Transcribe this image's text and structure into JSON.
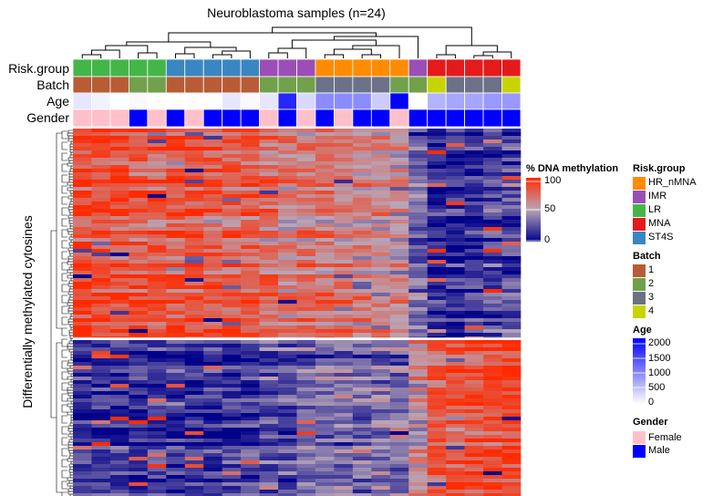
{
  "title": "Neuroblastoma samples (n=24)",
  "chart_data": {
    "type": "heatmap",
    "title": "Neuroblastoma samples (n=24)",
    "ylabel": "Differentially methylated cytosines",
    "n_samples": 24,
    "annotation_rows": [
      "Risk.group",
      "Batch",
      "Age",
      "Gender"
    ],
    "samples": {
      "risk_group": [
        "LR",
        "LR",
        "LR",
        "LR",
        "LR",
        "ST4S",
        "ST4S",
        "ST4S",
        "ST4S",
        "ST4S",
        "IMR",
        "IMR",
        "IMR",
        "HR_nMNA",
        "HR_nMNA",
        "HR_nMNA",
        "HR_nMNA",
        "HR_nMNA",
        "IMR",
        "MNA",
        "MNA",
        "MNA",
        "MNA",
        "MNA"
      ],
      "batch": [
        "1",
        "1",
        "1",
        "2",
        "2",
        "1",
        "1",
        "1",
        "1",
        "1",
        "2",
        "2",
        "2",
        "3",
        "3",
        "3",
        "3",
        "2",
        "2",
        "4",
        "3",
        "3",
        "3",
        "4"
      ],
      "age": [
        200,
        100,
        0,
        50,
        0,
        0,
        0,
        0,
        200,
        50,
        200,
        1700,
        300,
        900,
        900,
        900,
        400,
        2000,
        0,
        600,
        700,
        700,
        800,
        800
      ],
      "gender": [
        "Female",
        "Female",
        "Female",
        "Male",
        "Female",
        "Male",
        "Female",
        "Male",
        "Male",
        "Male",
        "Female",
        "Male",
        "Female",
        "Male",
        "Female",
        "Male",
        "Male",
        "Female",
        "Male",
        "Male",
        "Male",
        "Male",
        "Male",
        "Male"
      ]
    },
    "methylation_clusters": [
      {
        "cluster": "top",
        "mean_by_sample": [
          88,
          85,
          85,
          82,
          80,
          83,
          82,
          81,
          80,
          78,
          72,
          65,
          70,
          68,
          65,
          64,
          62,
          55,
          30,
          10,
          12,
          15,
          18,
          20
        ]
      },
      {
        "cluster": "bottom",
        "mean_by_sample": [
          12,
          15,
          14,
          13,
          15,
          14,
          15,
          13,
          15,
          16,
          25,
          22,
          28,
          30,
          33,
          30,
          35,
          30,
          55,
          80,
          82,
          85,
          88,
          90
        ]
      }
    ],
    "color_scale": {
      "name": "% DNA methylation",
      "ticks": [
        "100",
        "50",
        "0"
      ],
      "colors": [
        "#ff2a00",
        "#b8a6b8",
        "#00008a"
      ]
    },
    "legends": {
      "risk_group": {
        "title": "Risk.group",
        "items": [
          {
            "label": "HR_nMNA",
            "color": "#ff8c00"
          },
          {
            "label": "IMR",
            "color": "#9b4fb6"
          },
          {
            "label": "LR",
            "color": "#44b649"
          },
          {
            "label": "MNA",
            "color": "#e41a1c"
          },
          {
            "label": "ST4S",
            "color": "#3a86c2"
          }
        ]
      },
      "batch": {
        "title": "Batch",
        "items": [
          {
            "label": "1",
            "color": "#b85c35"
          },
          {
            "label": "2",
            "color": "#72a04b"
          },
          {
            "label": "3",
            "color": "#6b7288"
          },
          {
            "label": "4",
            "color": "#c8d400"
          }
        ]
      },
      "age": {
        "title": "Age",
        "ticks": [
          "2000",
          "1500",
          "1000",
          "500",
          "0"
        ],
        "colors": [
          "#0000ff",
          "#ffffff"
        ]
      },
      "gender": {
        "title": "Gender",
        "items": [
          {
            "label": "Female",
            "color": "#ffc0cb"
          },
          {
            "label": "Male",
            "color": "#0000ff"
          }
        ]
      }
    },
    "grid": false
  }
}
